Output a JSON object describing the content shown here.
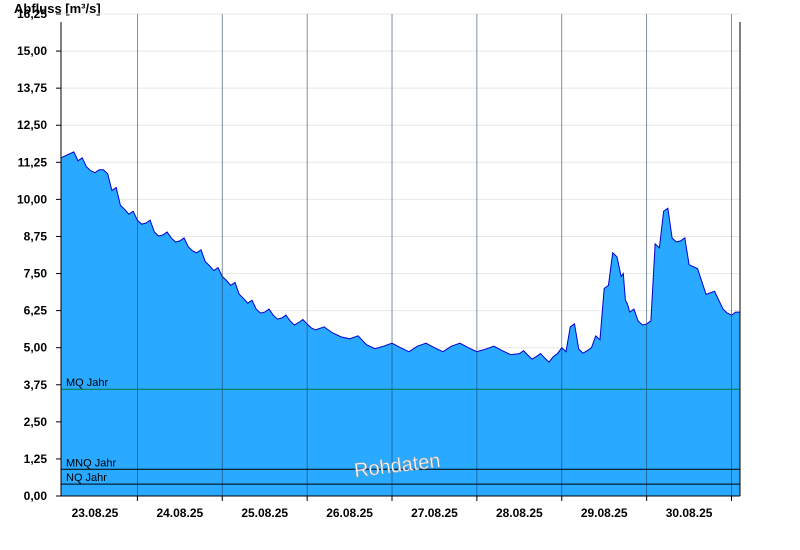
{
  "chart_data": {
    "type": "area",
    "title": "",
    "ylabel": "Abfluss [m³/s]",
    "xlabel": "",
    "ylim": [
      0,
      16.25
    ],
    "yticks": [
      "0,00",
      "1,25",
      "2,50",
      "3,75",
      "5,00",
      "6,25",
      "7,50",
      "8,75",
      "10,00",
      "11,25",
      "12,50",
      "13,75",
      "15,00",
      "16,25"
    ],
    "xticks": [
      "23.08.25",
      "24.08.25",
      "25.08.25",
      "26.08.25",
      "27.08.25",
      "28.08.25",
      "29.08.25",
      "30.08.25"
    ],
    "x_start_day": 22.6,
    "x_end_day": 30.6,
    "grid": true,
    "series": [
      {
        "color": "#29a9ff",
        "line_color": "#0000cc",
        "x": [
          22.6,
          22.75,
          22.8,
          22.9,
          23.0,
          23.1,
          23.2,
          23.3,
          23.4,
          23.5,
          23.6,
          23.7,
          23.8,
          23.9,
          24.0,
          24.1,
          24.2,
          24.3,
          24.4,
          24.5,
          24.6,
          24.7,
          24.8,
          24.9,
          25.0,
          25.1,
          25.2,
          25.3,
          25.4,
          25.5,
          25.6,
          25.8,
          26.0,
          26.2,
          26.4,
          26.6,
          26.8,
          27.0,
          27.2,
          27.4,
          27.6,
          27.8,
          28.0,
          28.1,
          28.2,
          28.3,
          28.4,
          28.5,
          28.6,
          28.7,
          28.8,
          28.9,
          29.0,
          29.1,
          29.2,
          29.25,
          29.3,
          29.4,
          29.5,
          29.6,
          29.7,
          29.8,
          29.9,
          30.0,
          30.2,
          30.4,
          30.5,
          30.6
        ],
        "values": [
          11.4,
          11.6,
          11.3,
          11.1,
          10.9,
          11.0,
          10.3,
          9.8,
          9.5,
          9.3,
          9.2,
          8.9,
          8.8,
          8.7,
          8.6,
          8.4,
          8.2,
          7.9,
          7.6,
          7.4,
          7.1,
          6.8,
          6.5,
          6.3,
          6.2,
          6.1,
          6.0,
          5.9,
          5.85,
          5.8,
          5.6,
          5.5,
          5.3,
          5.1,
          5.05,
          5.0,
          5.05,
          5.0,
          5.05,
          5.0,
          4.95,
          4.9,
          4.8,
          4.75,
          4.7,
          4.65,
          4.7,
          5.0,
          5.7,
          4.95,
          4.9,
          5.4,
          7.0,
          8.2,
          7.4,
          6.6,
          6.2,
          5.9,
          5.8,
          8.5,
          9.6,
          8.7,
          8.6,
          7.8,
          6.8,
          6.3,
          6.1,
          6.2
        ]
      }
    ],
    "reference_lines": [
      {
        "label": "MQ Jahr",
        "value": 3.6,
        "color": "#007a3d"
      },
      {
        "label": "MNQ Jahr",
        "value": 0.9,
        "color": "#000000"
      },
      {
        "label": "NQ Jahr",
        "value": 0.4,
        "color": "#000000"
      }
    ],
    "watermark": "Rohdaten"
  }
}
